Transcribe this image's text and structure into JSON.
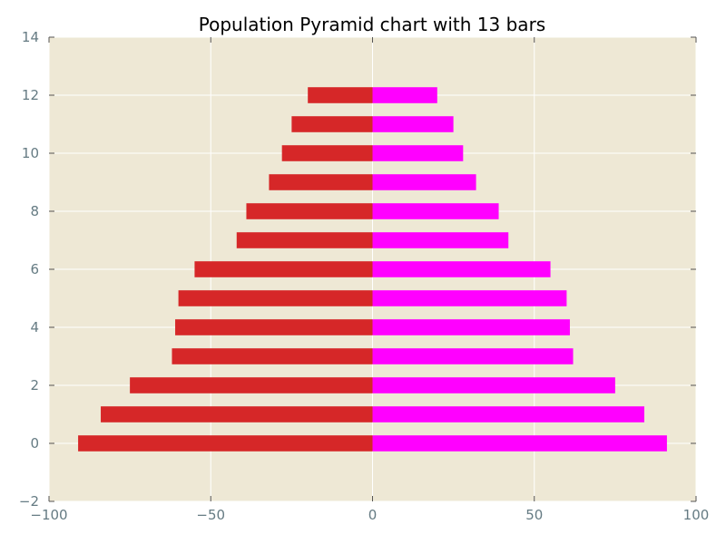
{
  "chart_data": {
    "type": "bar",
    "orientation": "horizontal",
    "title": "Population Pyramid chart with 13 bars",
    "xlabel": "",
    "ylabel": "",
    "xlim": [
      -100,
      100
    ],
    "ylim": [
      -2,
      14
    ],
    "xticks": [
      -100,
      -50,
      0,
      50,
      100
    ],
    "xtick_labels": [
      "−100",
      "−50",
      "0",
      "50",
      "100"
    ],
    "yticks": [
      -2,
      0,
      2,
      4,
      6,
      8,
      10,
      12,
      14
    ],
    "ytick_labels": [
      "−2",
      "0",
      "2",
      "4",
      "6",
      "8",
      "10",
      "12",
      "14"
    ],
    "grid": true,
    "legend": "none",
    "categories": [
      0,
      1,
      2,
      3,
      4,
      5,
      6,
      7,
      8,
      9,
      10,
      11,
      12
    ],
    "series": [
      {
        "color": "#d62728",
        "values": [
          -91,
          -84,
          -75,
          -62,
          -61,
          -60,
          -55,
          -42,
          -39,
          -32,
          -28,
          -25,
          -20
        ]
      },
      {
        "color": "#ff00ff",
        "values": [
          91,
          84,
          75,
          62,
          61,
          60,
          55,
          42,
          39,
          32,
          28,
          25,
          20
        ]
      }
    ],
    "background_color": "#eee8d5",
    "grid_color": "#ffffff",
    "axis_text_color": "#657b83"
  }
}
